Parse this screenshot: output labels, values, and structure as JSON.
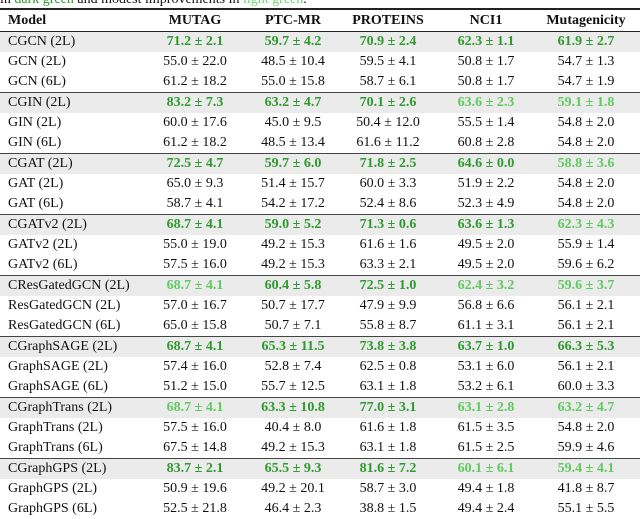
{
  "caption": {
    "parts": [
      "in ",
      "dark green",
      " and modest improvements in ",
      "light green",
      "."
    ]
  },
  "table": {
    "columns": [
      "Model",
      "MUTAG",
      "PTC-MR",
      "PROTEINS",
      "NCI1",
      "Mutagenicity"
    ],
    "groups": [
      {
        "rows": [
          [
            "CGCN (2L)",
            "71.2 ± 2.1",
            "59.7 ± 4.2",
            "70.9 ± 2.4",
            "62.3 ± 1.1",
            "61.9 ± 2.7"
          ],
          [
            "GCN (2L)",
            "55.0 ± 22.0",
            "48.5 ± 10.4",
            "59.5 ± 4.1",
            "50.8 ± 1.7",
            "54.7 ± 1.3"
          ],
          [
            "GCN (6L)",
            "61.2 ± 18.2",
            "55.0 ± 15.8",
            "58.7 ± 6.1",
            "50.8 ± 1.7",
            "54.7 ± 1.9"
          ]
        ],
        "emphasis": [
          "dark",
          "dark",
          "dark",
          "dark",
          "dark"
        ]
      },
      {
        "rows": [
          [
            "CGIN (2L)",
            "83.2 ± 7.3",
            "63.2 ± 4.7",
            "70.1 ± 2.6",
            "63.6 ± 2.3",
            "59.1 ± 1.8"
          ],
          [
            "GIN (2L)",
            "60.0 ± 17.6",
            "45.0 ± 9.5",
            "50.4 ± 12.0",
            "55.5 ± 1.4",
            "54.8 ± 2.0"
          ],
          [
            "GIN (6L)",
            "61.2 ± 18.2",
            "48.5 ± 13.4",
            "61.6 ± 11.2",
            "60.8 ± 2.8",
            "54.8 ± 2.0"
          ]
        ],
        "emphasis": [
          "dark",
          "dark",
          "dark",
          "light",
          "light"
        ]
      },
      {
        "rows": [
          [
            "CGAT (2L)",
            "72.5 ± 4.7",
            "59.7 ± 6.0",
            "71.8 ± 2.5",
            "64.6 ± 0.0",
            "58.8 ± 3.6"
          ],
          [
            "GAT (2L)",
            "65.0 ± 9.3",
            "51.4 ± 15.7",
            "60.0 ± 3.3",
            "51.9 ± 2.2",
            "54.8 ± 2.0"
          ],
          [
            "GAT (6L)",
            "58.7 ± 4.1",
            "54.2 ± 17.2",
            "52.4 ± 8.6",
            "52.3 ± 4.9",
            "54.8 ± 2.0"
          ]
        ],
        "emphasis": [
          "dark",
          "dark",
          "dark",
          "dark",
          "light"
        ]
      },
      {
        "rows": [
          [
            "CGATv2 (2L)",
            "68.7 ± 4.1",
            "59.0 ± 5.2",
            "71.3 ± 0.6",
            "63.6 ± 1.3",
            "62.3 ± 4.3"
          ],
          [
            "GATv2 (2L)",
            "55.0 ± 19.0",
            "49.2 ± 15.3",
            "61.6 ± 1.6",
            "49.5 ± 2.0",
            "55.9 ± 1.4"
          ],
          [
            "GATv2 (6L)",
            "57.5 ± 16.0",
            "49.2 ± 15.3",
            "63.3 ± 2.1",
            "49.5 ± 2.0",
            "59.6 ± 6.2"
          ]
        ],
        "emphasis": [
          "dark",
          "dark",
          "dark",
          "dark",
          "light"
        ]
      },
      {
        "rows": [
          [
            "CResGatedGCN (2L)",
            "68.7 ± 4.1",
            "60.4 ± 5.8",
            "72.5 ± 1.0",
            "62.4 ± 3.2",
            "59.6 ± 3.7"
          ],
          [
            "ResGatedGCN (2L)",
            "57.0 ± 16.7",
            "50.7 ± 17.7",
            "47.9 ± 9.9",
            "56.8 ± 6.6",
            "56.1 ± 2.1"
          ],
          [
            "ResGatedGCN (6L)",
            "65.0 ± 15.8",
            "50.7 ± 7.1",
            "55.8 ± 8.7",
            "61.1 ± 3.1",
            "56.1 ± 2.1"
          ]
        ],
        "emphasis": [
          "light",
          "dark",
          "dark",
          "light",
          "light"
        ]
      },
      {
        "rows": [
          [
            "CGraphSAGE (2L)",
            "68.7 ± 4.1",
            "65.3 ± 11.5",
            "73.8 ± 3.8",
            "63.7 ± 1.0",
            "66.3 ± 5.3"
          ],
          [
            "GraphSAGE (2L)",
            "57.4 ± 16.0",
            "52.8 ± 7.4",
            "62.5 ± 0.8",
            "53.1 ± 6.0",
            "56.1 ± 2.1"
          ],
          [
            "GraphSAGE (6L)",
            "51.2 ± 15.0",
            "55.7 ± 12.5",
            "63.1 ± 1.8",
            "53.2 ± 6.1",
            "60.0 ± 3.3"
          ]
        ],
        "emphasis": [
          "dark",
          "dark",
          "dark",
          "dark",
          "dark"
        ]
      },
      {
        "rows": [
          [
            "CGraphTrans (2L)",
            "68.7 ± 4.1",
            "63.3 ± 10.8",
            "77.0 ± 3.1",
            "63.1 ± 2.8",
            "63.2 ± 4.7"
          ],
          [
            "GraphTrans (2L)",
            "57.5 ± 16.0",
            "40.4 ± 8.0",
            "61.6 ± 1.8",
            "61.5 ± 3.5",
            "54.8 ± 2.0"
          ],
          [
            "GraphTrans (6L)",
            "67.5 ± 14.8",
            "49.2 ± 15.3",
            "63.1 ± 1.8",
            "61.5 ± 2.5",
            "59.9 ± 4.6"
          ]
        ],
        "emphasis": [
          "light",
          "dark",
          "dark",
          "light",
          "light"
        ]
      },
      {
        "rows": [
          [
            "CGraphGPS (2L)",
            "83.7 ± 2.1",
            "65.5 ± 9.3",
            "81.6 ± 7.2",
            "60.1 ± 6.1",
            "59.4 ± 4.1"
          ],
          [
            "GraphGPS (2L)",
            "50.9 ± 19.6",
            "49.2 ± 20.1",
            "58.7 ± 3.0",
            "49.4 ± 1.8",
            "41.8 ± 8.7"
          ],
          [
            "GraphGPS (6L)",
            "52.5 ± 21.8",
            "46.4 ± 2.3",
            "38.8 ± 1.5",
            "49.4 ± 2.4",
            "55.1 ± 5.5"
          ]
        ],
        "emphasis": [
          "dark",
          "dark",
          "dark",
          "light",
          "light"
        ]
      }
    ]
  }
}
